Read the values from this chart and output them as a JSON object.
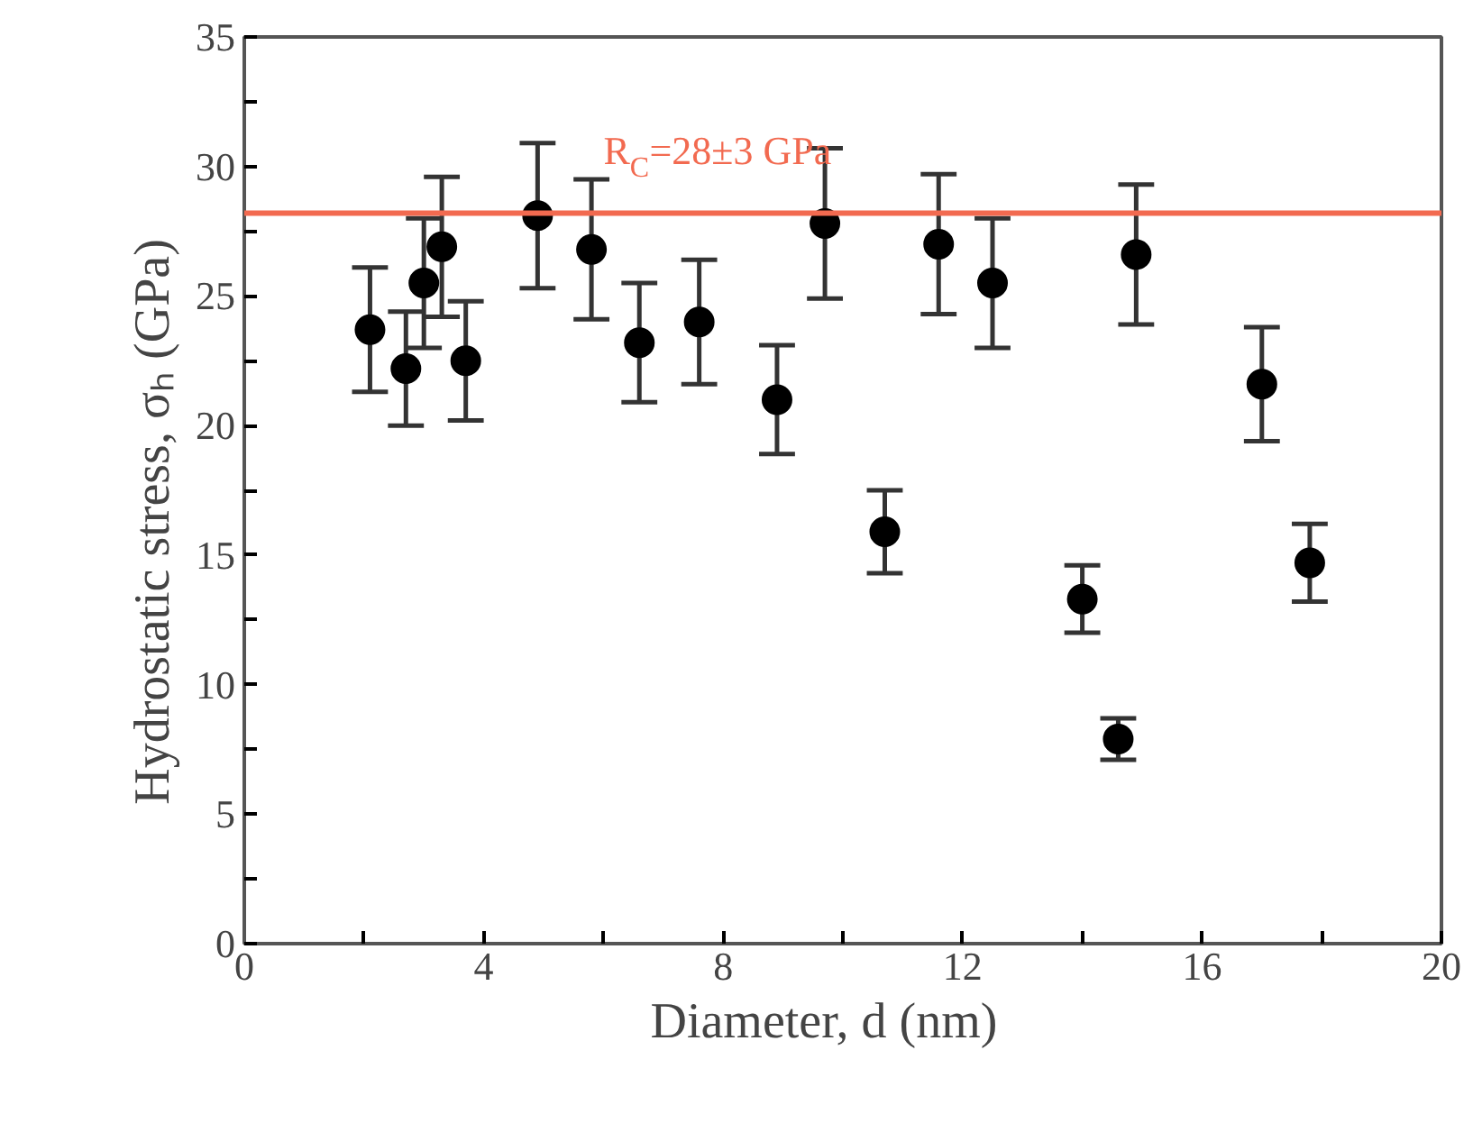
{
  "chart_data": {
    "type": "scatter",
    "xlabel": "Diameter,  d   (nm)",
    "ylabel": "Hydrostatic  stress,   σₕ   (GPa)",
    "x": [
      2.1,
      2.7,
      3.0,
      3.3,
      3.7,
      4.9,
      5.8,
      6.6,
      7.6,
      8.9,
      9.7,
      10.7,
      11.6,
      12.5,
      14.0,
      14.6,
      14.9,
      17.0,
      17.8
    ],
    "series": [
      {
        "color": "#000000",
        "values": [
          23.7,
          22.2,
          25.5,
          26.9,
          22.5,
          28.1,
          26.8,
          23.2,
          24.0,
          21.0,
          27.8,
          15.9,
          27.0,
          25.5,
          13.3,
          7.9,
          26.6,
          21.6,
          14.7
        ],
        "errors": [
          2.4,
          2.2,
          2.5,
          2.7,
          2.3,
          2.8,
          2.7,
          2.3,
          2.4,
          2.1,
          2.9,
          1.6,
          2.7,
          2.5,
          1.3,
          0.8,
          2.7,
          2.2,
          1.5
        ]
      }
    ],
    "marker": "circle",
    "xlim": [
      0,
      20
    ],
    "ylim": [
      0,
      35
    ],
    "xticks": [
      0,
      {
        "value": 2,
        "label": null
      },
      4,
      {
        "value": 6,
        "label": null
      },
      8,
      {
        "value": 10,
        "label": null
      },
      12,
      {
        "value": 14,
        "label": null
      },
      16,
      {
        "value": 18,
        "label": null
      },
      20
    ],
    "yticks": [
      0,
      {
        "value": 2.5,
        "label": null
      },
      5,
      {
        "value": 7.5,
        "label": null
      },
      10,
      {
        "value": 12.5,
        "label": null
      },
      15,
      {
        "value": 17.5,
        "label": null
      },
      20,
      {
        "value": 22.5,
        "label": null
      },
      25,
      {
        "value": 27.5,
        "label": null
      },
      30,
      {
        "value": 32.5,
        "label": null
      },
      35
    ],
    "ref_lines": [
      {
        "axis": "y",
        "value": 28.2,
        "label": "R$_{C}$=28±3 GPa",
        "color": "#f26a50",
        "line_style": "solid"
      }
    ],
    "grid": false
  }
}
